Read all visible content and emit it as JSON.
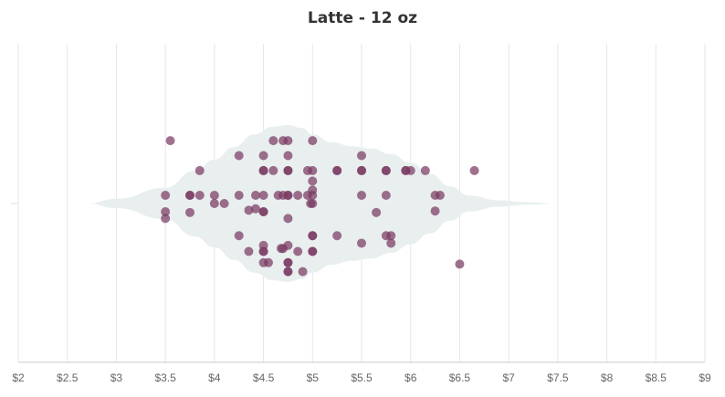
{
  "chart_data": {
    "type": "scatter",
    "subtype": "violin-with-jittered-points",
    "title": "Latte - 12 oz",
    "xlabel": "",
    "ylabel": "",
    "xlim": [
      2,
      9
    ],
    "x_ticks": [
      2,
      2.5,
      3,
      3.5,
      4,
      4.5,
      5,
      5.5,
      6,
      6.5,
      7,
      7.5,
      8,
      8.5,
      9
    ],
    "x_tick_labels": [
      "$2",
      "$2.5",
      "$3",
      "$3.5",
      "$4",
      "$4.5",
      "$5",
      "$5.5",
      "$6",
      "$6.5",
      "$7",
      "$7.5",
      "$8",
      "$8.5",
      "$9"
    ],
    "grid": "vertical",
    "legend": "none",
    "colors": {
      "points": "#7a3a63",
      "violin": "#e9efef",
      "grid": "#e6e6e6",
      "axis_text": "#666666"
    },
    "violin_range": [
      2.7,
      7.5
    ],
    "violin_density": [
      [
        2.7,
        0.0
      ],
      [
        3.0,
        0.06
      ],
      [
        3.5,
        0.2
      ],
      [
        3.8,
        0.42
      ],
      [
        4.0,
        0.56
      ],
      [
        4.2,
        0.72
      ],
      [
        4.4,
        0.88
      ],
      [
        4.6,
        0.98
      ],
      [
        4.75,
        1.0
      ],
      [
        4.9,
        0.96
      ],
      [
        5.0,
        0.88
      ],
      [
        5.2,
        0.78
      ],
      [
        5.4,
        0.73
      ],
      [
        5.6,
        0.7
      ],
      [
        5.8,
        0.63
      ],
      [
        6.0,
        0.52
      ],
      [
        6.2,
        0.38
      ],
      [
        6.4,
        0.22
      ],
      [
        6.6,
        0.1
      ],
      [
        6.9,
        0.04
      ],
      [
        7.2,
        0.015
      ],
      [
        7.5,
        0.0
      ]
    ],
    "points": [
      {
        "x": 3.55,
        "jitter": 0.84
      },
      {
        "x": 3.5,
        "jitter": 0.11
      },
      {
        "x": 3.5,
        "jitter": -0.11
      },
      {
        "x": 3.5,
        "jitter": -0.2
      },
      {
        "x": 3.75,
        "jitter": 0.11
      },
      {
        "x": 3.75,
        "jitter": 0.11
      },
      {
        "x": 3.75,
        "jitter": -0.12
      },
      {
        "x": 3.85,
        "jitter": 0.44
      },
      {
        "x": 3.85,
        "jitter": 0.11
      },
      {
        "x": 4.0,
        "jitter": 0.11
      },
      {
        "x": 4.0,
        "jitter": 0.0
      },
      {
        "x": 4.1,
        "jitter": 0.0
      },
      {
        "x": 4.25,
        "jitter": 0.64
      },
      {
        "x": 4.25,
        "jitter": 0.11
      },
      {
        "x": 4.25,
        "jitter": -0.43
      },
      {
        "x": 4.35,
        "jitter": -0.09
      },
      {
        "x": 4.35,
        "jitter": -0.64
      },
      {
        "x": 4.42,
        "jitter": 0.11
      },
      {
        "x": 4.42,
        "jitter": -0.07
      },
      {
        "x": 4.5,
        "jitter": 0.64
      },
      {
        "x": 4.5,
        "jitter": 0.44
      },
      {
        "x": 4.5,
        "jitter": 0.44
      },
      {
        "x": 4.5,
        "jitter": 0.11
      },
      {
        "x": 4.5,
        "jitter": -0.11
      },
      {
        "x": 4.5,
        "jitter": -0.11
      },
      {
        "x": 4.5,
        "jitter": -0.56
      },
      {
        "x": 4.5,
        "jitter": -0.64
      },
      {
        "x": 4.5,
        "jitter": -0.64
      },
      {
        "x": 4.5,
        "jitter": -0.79
      },
      {
        "x": 4.55,
        "jitter": -0.79
      },
      {
        "x": 4.6,
        "jitter": 0.84
      },
      {
        "x": 4.6,
        "jitter": 0.44
      },
      {
        "x": 4.65,
        "jitter": 0.11
      },
      {
        "x": 4.68,
        "jitter": -0.6
      },
      {
        "x": 4.7,
        "jitter": 0.84
      },
      {
        "x": 4.7,
        "jitter": 0.11
      },
      {
        "x": 4.7,
        "jitter": -0.6
      },
      {
        "x": 4.75,
        "jitter": 0.84
      },
      {
        "x": 4.75,
        "jitter": 0.64
      },
      {
        "x": 4.75,
        "jitter": 0.44
      },
      {
        "x": 4.75,
        "jitter": 0.44
      },
      {
        "x": 4.75,
        "jitter": 0.11
      },
      {
        "x": 4.75,
        "jitter": 0.11
      },
      {
        "x": 4.75,
        "jitter": -0.2
      },
      {
        "x": 4.75,
        "jitter": -0.56
      },
      {
        "x": 4.75,
        "jitter": -0.79
      },
      {
        "x": 4.75,
        "jitter": -0.79
      },
      {
        "x": 4.75,
        "jitter": -0.91
      },
      {
        "x": 4.75,
        "jitter": -0.91
      },
      {
        "x": 4.85,
        "jitter": 0.11
      },
      {
        "x": 4.85,
        "jitter": -0.64
      },
      {
        "x": 4.9,
        "jitter": -0.91
      },
      {
        "x": 4.95,
        "jitter": 0.44
      },
      {
        "x": 4.95,
        "jitter": 0.11
      },
      {
        "x": 4.98,
        "jitter": 0.0
      },
      {
        "x": 5.0,
        "jitter": 0.84
      },
      {
        "x": 5.0,
        "jitter": 0.44
      },
      {
        "x": 5.0,
        "jitter": 0.3
      },
      {
        "x": 5.0,
        "jitter": 0.18
      },
      {
        "x": 5.0,
        "jitter": 0.11
      },
      {
        "x": 5.0,
        "jitter": 0.0
      },
      {
        "x": 5.0,
        "jitter": -0.43
      },
      {
        "x": 5.0,
        "jitter": -0.64
      },
      {
        "x": 5.0,
        "jitter": -0.64
      },
      {
        "x": 5.0,
        "jitter": -0.43
      },
      {
        "x": 5.25,
        "jitter": 0.44
      },
      {
        "x": 5.25,
        "jitter": 0.44
      },
      {
        "x": 5.25,
        "jitter": -0.43
      },
      {
        "x": 5.5,
        "jitter": 0.64
      },
      {
        "x": 5.5,
        "jitter": 0.44
      },
      {
        "x": 5.5,
        "jitter": 0.44
      },
      {
        "x": 5.5,
        "jitter": 0.11
      },
      {
        "x": 5.5,
        "jitter": -0.53
      },
      {
        "x": 5.65,
        "jitter": -0.12
      },
      {
        "x": 5.75,
        "jitter": 0.44
      },
      {
        "x": 5.75,
        "jitter": 0.44
      },
      {
        "x": 5.75,
        "jitter": 0.11
      },
      {
        "x": 5.75,
        "jitter": -0.43
      },
      {
        "x": 5.8,
        "jitter": -0.43
      },
      {
        "x": 5.8,
        "jitter": -0.53
      },
      {
        "x": 5.95,
        "jitter": 0.44
      },
      {
        "x": 5.95,
        "jitter": 0.44
      },
      {
        "x": 6.0,
        "jitter": 0.44
      },
      {
        "x": 6.15,
        "jitter": 0.44
      },
      {
        "x": 6.25,
        "jitter": 0.11
      },
      {
        "x": 6.25,
        "jitter": -0.1
      },
      {
        "x": 6.3,
        "jitter": 0.11
      },
      {
        "x": 6.5,
        "jitter": -0.81
      },
      {
        "x": 6.65,
        "jitter": 0.44
      }
    ]
  }
}
